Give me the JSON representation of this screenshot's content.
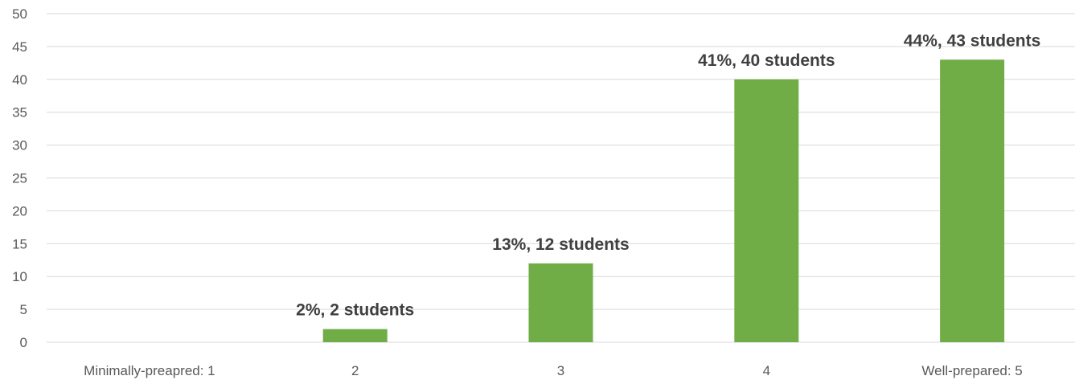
{
  "chart_data": {
    "type": "bar",
    "categories": [
      "Minimally-preapred: 1",
      "2",
      "3",
      "4",
      "Well-prepared: 5"
    ],
    "values": [
      0,
      2,
      12,
      40,
      43
    ],
    "data_labels": [
      "",
      "2%,   2 students",
      "13%,   12 students",
      "41%,   40 students",
      "44%,   43 students"
    ],
    "ylim": [
      0,
      50
    ],
    "y_ticks": [
      0,
      5,
      10,
      15,
      20,
      25,
      30,
      35,
      40,
      45,
      50
    ],
    "grid": true,
    "bar_color": "#70ad47",
    "title": "",
    "xlabel": "",
    "ylabel": ""
  }
}
